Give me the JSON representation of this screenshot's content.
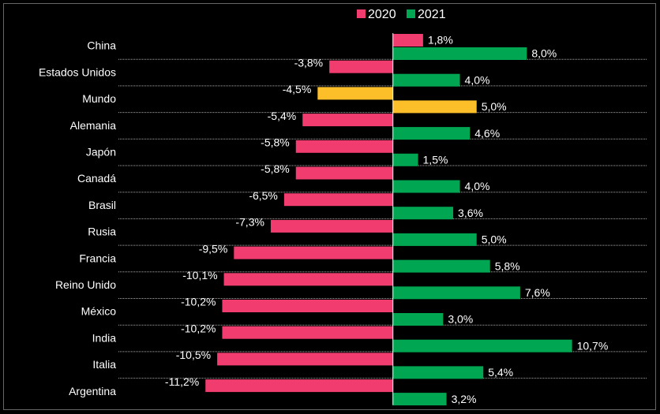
{
  "chart_data": {
    "type": "bar",
    "orientation": "horizontal",
    "categories": [
      "China",
      "Estados Unidos",
      "Mundo",
      "Alemania",
      "Japón",
      "Canadá",
      "Brasil",
      "Rusia",
      "Francia",
      "Reino Unido",
      "México",
      "India",
      "Italia",
      "Argentina"
    ],
    "series": [
      {
        "name": "2020",
        "color": "#f03c6e",
        "colors": [
          "#f03c6e",
          "#f03c6e",
          "#fcbf2a",
          "#f03c6e",
          "#f03c6e",
          "#f03c6e",
          "#f03c6e",
          "#f03c6e",
          "#f03c6e",
          "#f03c6e",
          "#f03c6e",
          "#f03c6e",
          "#f03c6e",
          "#f03c6e"
        ],
        "values": [
          1.8,
          -3.8,
          -4.5,
          -5.4,
          -5.8,
          -5.8,
          -6.5,
          -7.3,
          -9.5,
          -10.1,
          -10.2,
          -10.2,
          -10.5,
          -11.2
        ],
        "value_labels": [
          "1,8%",
          "-3,8%",
          "-4,5%",
          "-5,4%",
          "-5,8%",
          "-5,8%",
          "-6,5%",
          "-7,3%",
          "-9,5%",
          "-10,1%",
          "-10,2%",
          "-10,2%",
          "-10,5%",
          "-11,2%"
        ]
      },
      {
        "name": "2021",
        "color": "#00a651",
        "colors": [
          "#00a651",
          "#00a651",
          "#fcbf2a",
          "#00a651",
          "#00a651",
          "#00a651",
          "#00a651",
          "#00a651",
          "#00a651",
          "#00a651",
          "#00a651",
          "#00a651",
          "#00a651",
          "#00a651"
        ],
        "values": [
          8.0,
          4.0,
          5.0,
          4.6,
          1.5,
          4.0,
          3.6,
          5.0,
          5.8,
          7.6,
          3.0,
          10.7,
          5.4,
          3.2
        ],
        "value_labels": [
          "8,0%",
          "4,0%",
          "5,0%",
          "4,6%",
          "1,5%",
          "4,0%",
          "3,6%",
          "5,0%",
          "5,8%",
          "7,6%",
          "3,0%",
          "10,7%",
          "5,4%",
          "3,2%"
        ]
      }
    ],
    "xlim": [
      -16.4,
      15.2
    ],
    "legend": "top"
  }
}
